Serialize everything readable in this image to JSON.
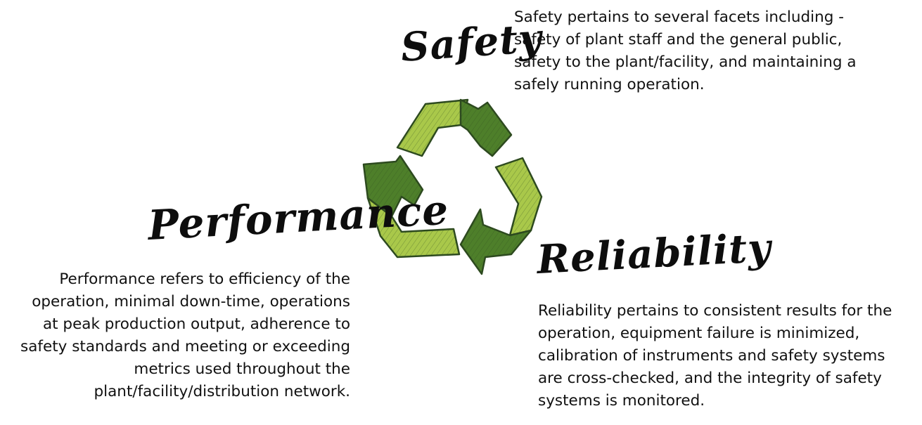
{
  "headings": {
    "safety": "Safety",
    "performance": "Performance",
    "reliability": "Reliability"
  },
  "descriptions": {
    "safety": [
      "Safety pertains to several facets including -",
      "safety of plant staff and the general public,",
      "safety to the plant/facility, and maintaining a",
      "safely running operation."
    ],
    "performance": [
      "Performance refers to efficiency of the",
      "operation, minimal down-time, operations",
      "at peak production output, adherence to",
      "safety standards and meeting or exceeding",
      "metrics used throughout the",
      "plant/facility/distribution network."
    ],
    "reliability": [
      "Reliability pertains to consistent results for the",
      "operation, equipment failure is minimized,",
      "calibration of instruments and safety systems",
      "are cross-checked, and the integrity of safety",
      "systems is monitored."
    ]
  },
  "colors": {
    "arrow_light": "#a9c84a",
    "arrow_dark": "#4e7f2a",
    "outline": "#2d4a1f",
    "text": "#111111"
  },
  "icons": {
    "center": "recycle-arrows-icon"
  }
}
